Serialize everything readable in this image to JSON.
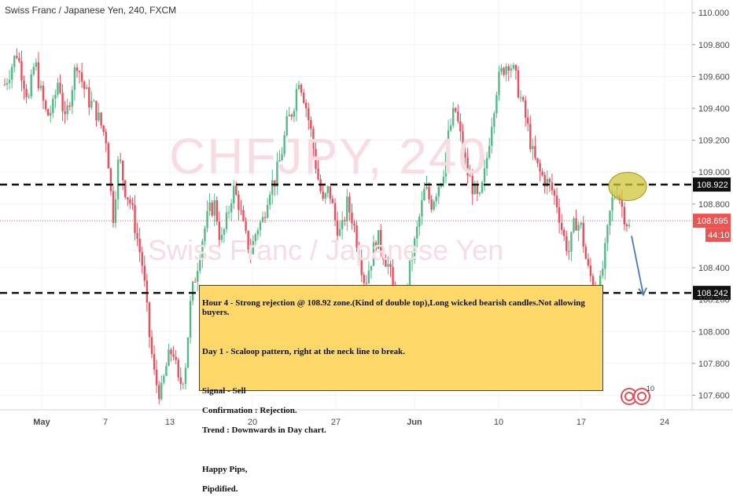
{
  "header": {
    "symbol_title": "Swiss Franc / Japanese Yen, 240, FXCM"
  },
  "watermark": {
    "main": "CHFJPY, 240",
    "sub": "Swiss Franc / Japanese Yen"
  },
  "chart_data": {
    "type": "candlestick",
    "y_axis": {
      "ylim": [
        107.42,
        110.08
      ],
      "tick_labels": [
        "110.000",
        "109.800",
        "109.600",
        "109.400",
        "109.200",
        "109.000",
        "108.800",
        "108.400",
        "108.200",
        "108.000",
        "107.800",
        "107.600"
      ]
    },
    "x_axis": {
      "tick_labels": [
        "May",
        "7",
        "13",
        "20",
        "27",
        "Jun",
        "10",
        "17",
        "24"
      ]
    },
    "price_lines": [
      {
        "label": "108.922",
        "value": 108.922,
        "style": "dashed"
      },
      {
        "label": "108.242",
        "value": 108.242,
        "style": "dashed"
      }
    ],
    "current_price": {
      "value": 108.695,
      "label": "108.695",
      "countdown": "44:10"
    },
    "colors": {
      "up": "#53b987",
      "down": "#eb4d5c",
      "last_price": "#ef5350",
      "arrow": "#4a78b8",
      "highlight": "#cfc43a"
    },
    "candle_close_path": [
      109.55,
      109.65,
      109.75,
      109.6,
      109.45,
      109.7,
      109.5,
      109.35,
      109.4,
      109.6,
      109.3,
      109.5,
      109.7,
      109.55,
      109.45,
      109.4,
      109.3,
      109.2,
      108.7,
      109.1,
      108.9,
      108.8,
      108.6,
      108.4,
      108.0,
      107.7,
      107.6,
      107.8,
      107.9,
      107.65,
      107.75,
      108.2,
      108.4,
      108.6,
      108.75,
      108.8,
      108.55,
      108.7,
      108.9,
      108.8,
      108.6,
      108.5,
      108.65,
      108.7,
      108.9,
      108.95,
      109.1,
      109.3,
      109.4,
      109.6,
      109.45,
      109.25,
      109.0,
      108.8,
      108.9,
      108.7,
      108.6,
      108.8,
      108.7,
      108.5,
      108.3,
      108.45,
      108.6,
      108.5,
      108.4,
      108.2,
      108.1,
      108.3,
      108.5,
      108.7,
      108.9,
      108.8,
      108.9,
      109.0,
      109.25,
      109.4,
      109.2,
      109.0,
      108.9,
      108.8,
      109.0,
      109.3,
      109.55,
      109.65,
      109.7,
      109.6,
      109.45,
      109.3,
      109.1,
      109.0,
      108.95,
      108.9,
      108.8,
      108.6,
      108.5,
      108.7,
      108.65,
      108.4,
      108.3,
      108.25,
      108.5,
      108.8,
      108.9,
      108.75,
      108.65
    ],
    "annotations": {
      "double_top_highlight_price": 108.9,
      "arrow": {
        "from_price": 108.6,
        "to_price": 108.23
      }
    }
  },
  "note": {
    "lines": [
      "Hour 4 - Strong rejection @ 108.92 zone.(Kind of double top),Long wicked bearish candles.Not allowing buyers.",
      "",
      "Day 1 - Scaloop pattern, right at the neck line to break.",
      "",
      "Signal - Sell",
      "Confirmation : Rejection.",
      "Trend : Downwards in Day chart.",
      "",
      "Happy Pips,",
      "Pipdified."
    ]
  },
  "brand": {
    "badge_number": "10"
  }
}
